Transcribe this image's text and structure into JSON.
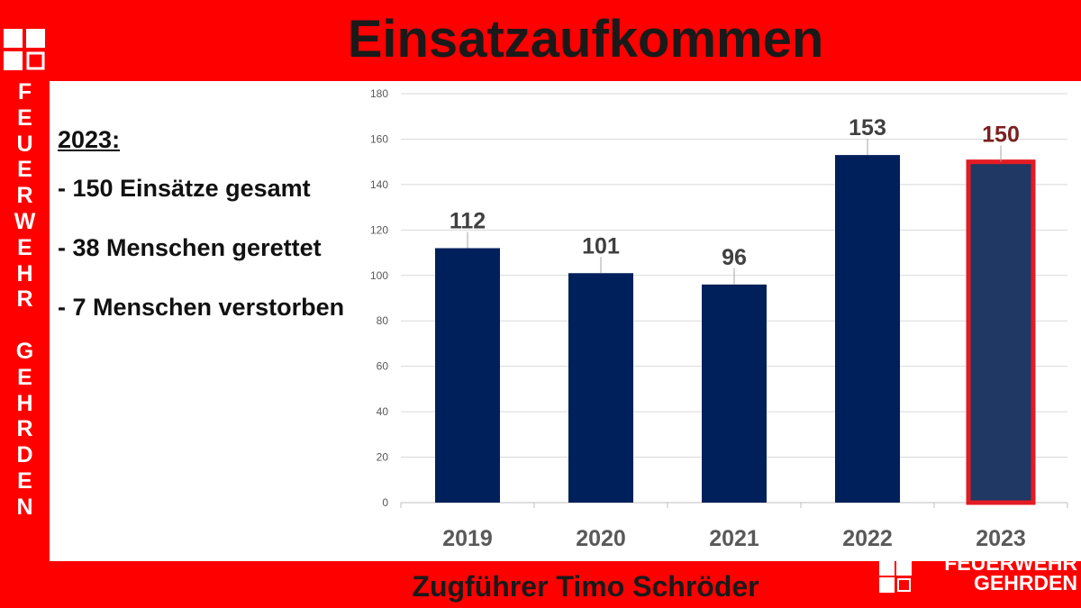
{
  "slide": {
    "title": "Einsatzaufkommen",
    "vertical_text": [
      "F",
      "E",
      "U",
      "E",
      "R",
      "W",
      "E",
      "H",
      "R",
      "",
      "G",
      "E",
      "H",
      "R",
      "D",
      "E",
      "N"
    ],
    "footer": "Zugführer Timo Schröder",
    "footer_logo_line1": "FEUERWEHR",
    "footer_logo_line2": "GEHRDEN"
  },
  "stats": {
    "heading": "2023:",
    "items": [
      "- 150 Einsätze gesamt",
      "- 38 Menschen gerettet",
      "- 7 Menschen verstorben"
    ]
  },
  "chart_data": {
    "type": "bar",
    "categories": [
      "2019",
      "2020",
      "2021",
      "2022",
      "2023"
    ],
    "values": [
      112,
      101,
      96,
      153,
      150
    ],
    "data_labels": [
      "112",
      "101",
      "96",
      "153",
      "150"
    ],
    "ylim": [
      0,
      180
    ],
    "yticks": [
      0,
      20,
      40,
      60,
      80,
      100,
      120,
      140,
      160,
      180
    ],
    "ytick_labels": [
      "0",
      "20",
      "40",
      "60",
      "80",
      "100",
      "120",
      "140",
      "160",
      "180"
    ],
    "grid": true,
    "highlight_index": 4,
    "bar_color": "#00205b",
    "highlight_fill": "#1f3864",
    "highlight_border": "#e31b23",
    "highlight_label_color": "#7b1f1f"
  },
  "colors": {
    "background": "#ff0000",
    "panel": "#ffffff",
    "text": "#1a1a1a"
  }
}
